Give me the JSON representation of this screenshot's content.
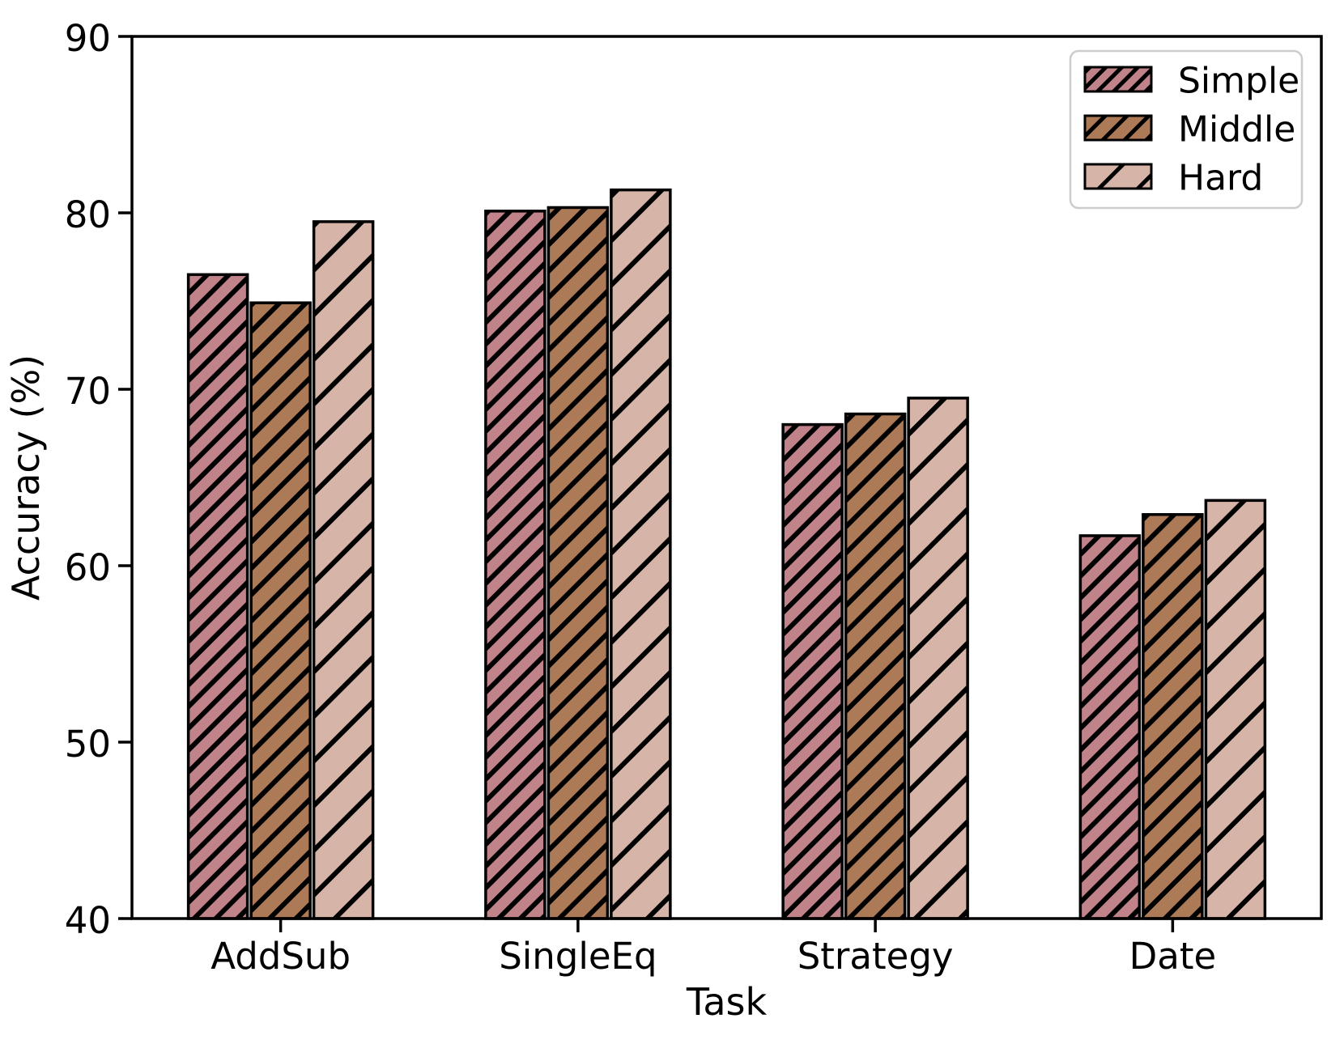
{
  "chart_data": {
    "type": "bar",
    "title": "",
    "xlabel": "Task",
    "ylabel": "Accuracy (%)",
    "categories": [
      "AddSub",
      "SingleEq",
      "Strategy",
      "Date"
    ],
    "series": [
      {
        "name": "Simple",
        "color": "#c08389",
        "hatch": "///",
        "values": [
          76.5,
          80.1,
          68.0,
          61.7
        ]
      },
      {
        "name": "Middle",
        "color": "#ad7a58",
        "hatch": "//",
        "values": [
          74.9,
          80.3,
          68.6,
          62.9
        ]
      },
      {
        "name": "Hard",
        "color": "#d6b5a8",
        "hatch": "/",
        "values": [
          79.5,
          81.3,
          69.5,
          63.7
        ]
      }
    ],
    "ylim": [
      40,
      90
    ],
    "yticks": [
      40,
      50,
      60,
      70,
      80,
      90
    ],
    "grid": false,
    "legend": {
      "position": "upper right",
      "labels": [
        "Simple",
        "Middle",
        "Hard"
      ]
    },
    "colors": {
      "bar_edge": "#000000",
      "hatch": "#000000",
      "axis": "#000000",
      "text": "#000000",
      "legend_border": "#cccccc",
      "legend_background": "#ffffff",
      "plot_background": "#ffffff"
    }
  }
}
